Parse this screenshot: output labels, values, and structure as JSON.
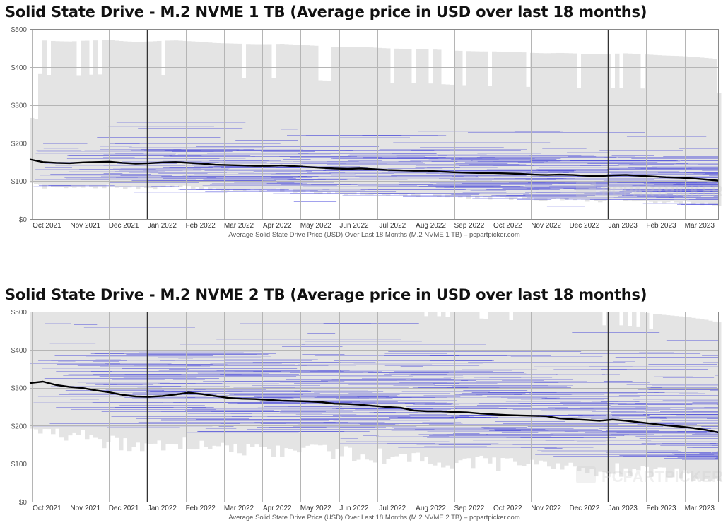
{
  "theme": {
    "accent": "#000000",
    "listing_color": "#3a3ad8",
    "band_color": "#e4e4e4",
    "grid_color": "#b5b5b5",
    "year_line_color": "#333333"
  },
  "watermark": "PCPARTPICKER",
  "chart_data": [
    {
      "type": "line",
      "title": "Solid State Drive - M.2 NVME 1 TB (Average price in USD over last 18 months)",
      "xlabel": "Average Solid State Drive Price (USD) Over Last 18 Months (M.2 NVME 1 TB) – pcpartpicker.com",
      "ylabel": "",
      "ylim": [
        0,
        500
      ],
      "yticks": [
        "$0",
        "$100",
        "$200",
        "$300",
        "$400",
        "$500"
      ],
      "xtick_labels": [
        "Oct 2021",
        "Nov 2021",
        "Dec 2021",
        "Jan 2022",
        "Feb 2022",
        "Mar 2022",
        "Apr 2022",
        "May 2022",
        "Jun 2022",
        "Jul 2022",
        "Aug 2022",
        "Sep 2022",
        "Oct 2022",
        "Nov 2022",
        "Dec 2022",
        "Jan 2023",
        "Feb 2023",
        "Mar 2023"
      ],
      "grid": true,
      "series": [
        {
          "values": [
            157,
            150,
            148,
            147,
            149,
            150,
            151,
            148,
            146,
            147,
            149,
            150,
            148,
            146,
            143,
            142,
            141,
            140,
            140,
            141,
            139,
            137,
            135,
            133,
            132,
            133,
            131,
            129,
            128,
            127,
            127,
            125,
            123,
            122,
            121,
            121,
            120,
            119,
            117,
            116,
            117,
            116,
            114,
            113,
            115,
            116,
            114,
            112,
            110,
            109,
            107,
            104,
            101
          ]
        }
      ]
    },
    {
      "type": "line",
      "title": "Solid State Drive - M.2 NVME 2 TB (Average price in USD over last 18 months)",
      "xlabel": "Average Solid State Drive Price (USD) Over Last 18 Months (M.2 NVME 2 TB) – pcpartpicker.com",
      "ylabel": "",
      "ylim": [
        0,
        500
      ],
      "yticks": [
        "$0",
        "$100",
        "$200",
        "$300",
        "$400",
        "$500"
      ],
      "xtick_labels": [
        "Oct 2021",
        "Nov 2021",
        "Dec 2021",
        "Jan 2022",
        "Feb 2022",
        "Mar 2022",
        "Apr 2022",
        "May 2022",
        "Jun 2022",
        "Jul 2022",
        "Aug 2022",
        "Sep 2022",
        "Oct 2022",
        "Nov 2022",
        "Dec 2022",
        "Jan 2023",
        "Feb 2023",
        "Mar 2023"
      ],
      "grid": true,
      "series": [
        {
          "values": [
            312,
            316,
            307,
            302,
            299,
            293,
            288,
            281,
            277,
            276,
            278,
            282,
            287,
            283,
            278,
            273,
            271,
            270,
            268,
            266,
            265,
            264,
            262,
            258,
            257,
            255,
            252,
            249,
            247,
            240,
            238,
            238,
            236,
            235,
            232,
            230,
            228,
            227,
            226,
            225,
            219,
            217,
            215,
            213,
            216,
            213,
            209,
            205,
            201,
            198,
            194,
            189,
            182
          ]
        }
      ]
    }
  ]
}
